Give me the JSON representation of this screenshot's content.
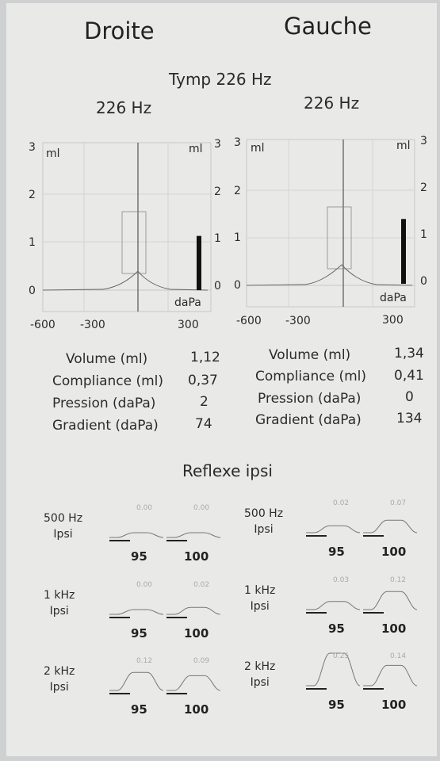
{
  "headers": {
    "right": "Droite",
    "left": "Gauche"
  },
  "tymp_title": "Tymp 226 Hz",
  "tymps": {
    "right": {
      "freq": "226 Hz",
      "y_ticks": [
        "3",
        "2",
        "1",
        "0"
      ],
      "unit_ml": "ml",
      "unit_dapa": "daPa",
      "x_ticks": [
        "-600",
        "-300",
        "300"
      ],
      "volume_bar": 1.12,
      "peak_pressure": 2,
      "peak_compliance": 0.37,
      "rows": [
        {
          "label": "Volume (ml)",
          "value": "1,12"
        },
        {
          "label": "Compliance (ml)",
          "value": "0,37"
        },
        {
          "label": "Pression (daPa)",
          "value": "2"
        },
        {
          "label": "Gradient (daPa)",
          "value": "74"
        }
      ]
    },
    "left": {
      "freq": "226 Hz",
      "y_ticks": [
        "3",
        "2",
        "1",
        "0"
      ],
      "unit_ml": "ml",
      "unit_dapa": "daPa",
      "x_ticks": [
        "-600",
        "-300",
        "300"
      ],
      "volume_bar": 1.34,
      "peak_pressure": 0,
      "peak_compliance": 0.41,
      "rows": [
        {
          "label": "Volume (ml)",
          "value": "1,34"
        },
        {
          "label": "Compliance (ml)",
          "value": "0,41"
        },
        {
          "label": "Pression (daPa)",
          "value": "0"
        },
        {
          "label": "Gradient (daPa)",
          "value": "134"
        }
      ]
    }
  },
  "reflex_title": "Reflexe ipsi",
  "reflex": {
    "right": [
      {
        "freq": "500 Hz",
        "mode": "Ipsi",
        "levels": [
          "95",
          "100"
        ],
        "values": [
          "0.00",
          "0.00"
        ]
      },
      {
        "freq": "1 kHz",
        "mode": "Ipsi",
        "levels": [
          "95",
          "100"
        ],
        "values": [
          "0.00",
          "0.02"
        ]
      },
      {
        "freq": "2 kHz",
        "mode": "Ipsi",
        "levels": [
          "95",
          "100"
        ],
        "values": [
          "0.12",
          "0.09"
        ]
      }
    ],
    "left": [
      {
        "freq": "500 Hz",
        "mode": "Ipsi",
        "levels": [
          "95",
          "100"
        ],
        "values": [
          "0.02",
          "0.07"
        ]
      },
      {
        "freq": "1 kHz",
        "mode": "Ipsi",
        "levels": [
          "95",
          "100"
        ],
        "values": [
          "0.03",
          "0.12"
        ]
      },
      {
        "freq": "2 kHz",
        "mode": "Ipsi",
        "levels": [
          "95",
          "100"
        ],
        "values": [
          "0.25",
          "0.14"
        ]
      }
    ]
  }
}
